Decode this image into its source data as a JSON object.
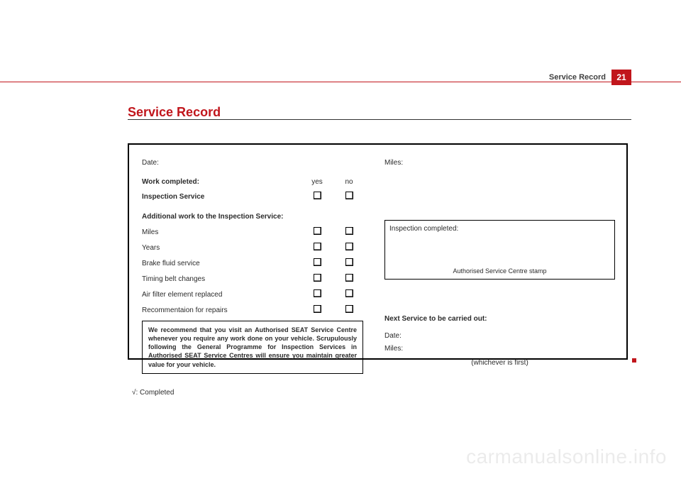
{
  "header": {
    "label": "Service Record",
    "page": "21"
  },
  "title": "Service Record",
  "left": {
    "date_label": "Date:",
    "work_completed": "Work completed:",
    "col_yes": "yes",
    "col_no": "no",
    "inspection_service": "Inspection Service",
    "additional_heading": "Additional work to the Inspection Service:",
    "rows": {
      "miles": "Miles",
      "years": "Years",
      "brake": "Brake fluid service",
      "timing": "Timing belt changes",
      "airfilter": "Air filter element replaced",
      "recomm": "Recommentaion for repairs"
    },
    "recommend_box": "We recommend that you visit an Authorised SEAT Service Centre whenever you require any work done on your vehicle.  Scrupulously following the General Programme for Inspection Services in Authorised SEAT Service Centres will ensure you maintain greater value for your vehicle.",
    "footnote": "√: Completed"
  },
  "right": {
    "miles_label": "Miles:",
    "stamp_title": "Inspection completed:",
    "stamp_caption": "Authorised Service Centre stamp",
    "next_service": "Next Service to be carried out:",
    "date_label": "Date:",
    "miles2_label": "Miles:",
    "whichever": "(whichever is first)"
  },
  "watermark": "carmanualsonline.info"
}
